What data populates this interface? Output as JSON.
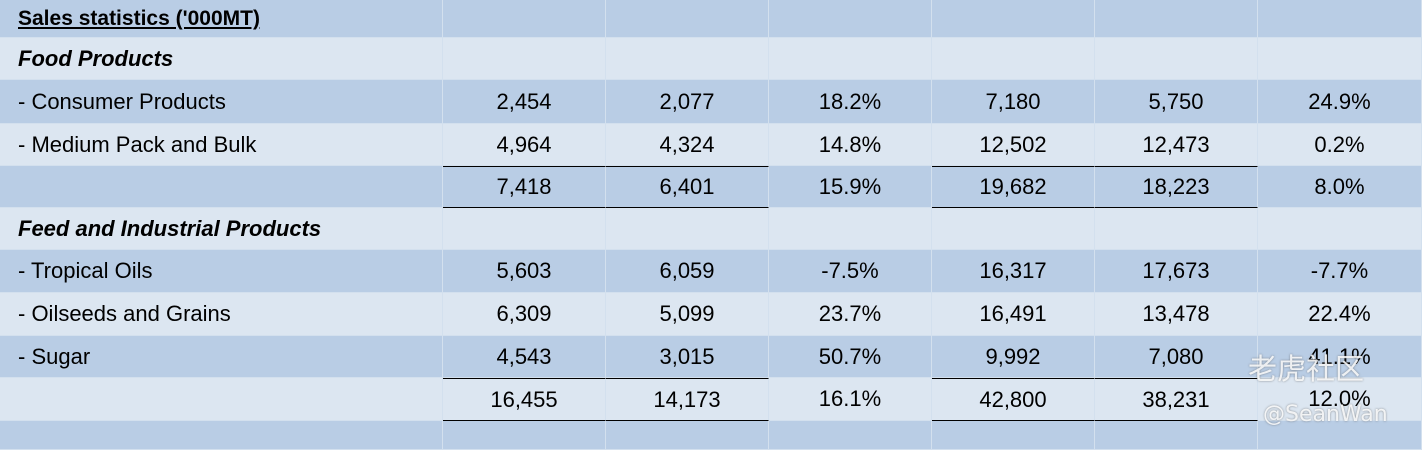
{
  "table": {
    "title": "Sales statistics ('000MT)",
    "rows": [
      {
        "section": "Food Products"
      },
      {
        "label": "- Consumer Products",
        "values": [
          "2,454",
          "2,077",
          "18.2%",
          "7,180",
          "5,750",
          "24.9%"
        ]
      },
      {
        "label": "- Medium Pack and Bulk",
        "values": [
          "4,964",
          "4,324",
          "14.8%",
          "12,502",
          "12,473",
          "0.2%"
        ]
      },
      {
        "values": [
          "7,418",
          "6,401",
          "15.9%",
          "19,682",
          "18,223",
          "8.0%"
        ],
        "subtotal": true
      },
      {
        "section": "Feed and Industrial Products"
      },
      {
        "label": "- Tropical Oils",
        "values": [
          "5,603",
          "6,059",
          "-7.5%",
          "16,317",
          "17,673",
          "-7.7%"
        ]
      },
      {
        "label": "- Oilseeds and Grains",
        "values": [
          "6,309",
          "5,099",
          "23.7%",
          "16,491",
          "13,478",
          "22.4%"
        ]
      },
      {
        "label": "- Sugar",
        "values": [
          "4,543",
          "3,015",
          "50.7%",
          "9,992",
          "7,080",
          "41.1%"
        ]
      },
      {
        "values": [
          "16,455",
          "14,173",
          "16.1%",
          "42,800",
          "38,231",
          "12.0%"
        ],
        "subtotal": true
      }
    ]
  },
  "watermark": {
    "brand": "老虎社区",
    "author": "@SeanWan"
  }
}
